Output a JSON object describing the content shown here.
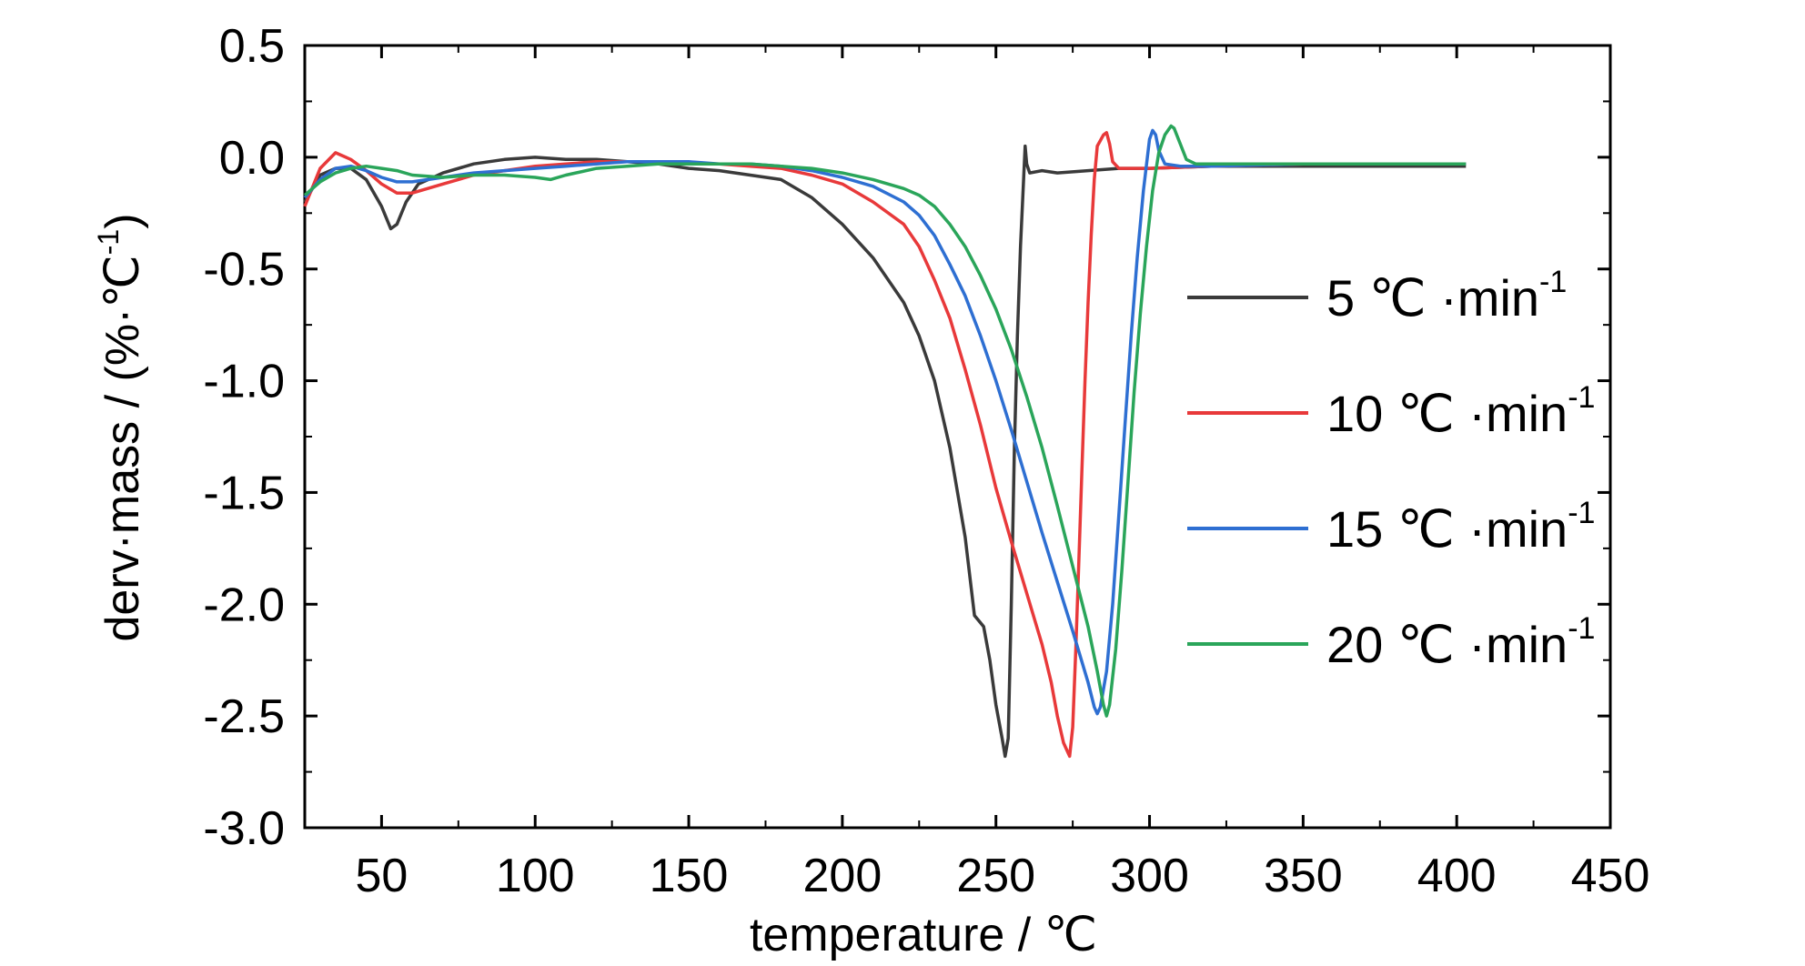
{
  "chart_data": {
    "type": "line",
    "xlabel": "temperature / ℃",
    "ylabel_main": "derv·mass / (%·℃",
    "ylabel_sup": "-1",
    "ylabel_close": ")",
    "xlim": [
      25,
      450
    ],
    "ylim": [
      -3.0,
      0.5
    ],
    "x_ticks": [
      50,
      100,
      150,
      200,
      250,
      300,
      350,
      400,
      450
    ],
    "x_tick_labels": [
      "50",
      "100",
      "150",
      "200",
      "250",
      "300",
      "350",
      "400",
      "450"
    ],
    "y_ticks": [
      0.5,
      0.0,
      -0.5,
      -1.0,
      -1.5,
      -2.0,
      -2.5,
      -3.0
    ],
    "y_tick_labels": [
      "0.5",
      "0.0",
      "-0.5",
      "-1.0",
      "-1.5",
      "-2.0",
      "-2.5",
      "-3.0"
    ],
    "grid": false,
    "legend_position": "right",
    "series": [
      {
        "name": "5 ℃·min-1",
        "legend_main": "5 ℃ ·min",
        "legend_sup": "-1",
        "color": "#3a3a3a",
        "points": [
          [
            25,
            -0.2
          ],
          [
            30,
            -0.08
          ],
          [
            35,
            -0.05
          ],
          [
            40,
            -0.05
          ],
          [
            45,
            -0.1
          ],
          [
            50,
            -0.22
          ],
          [
            53,
            -0.32
          ],
          [
            55,
            -0.3
          ],
          [
            58,
            -0.2
          ],
          [
            62,
            -0.12
          ],
          [
            70,
            -0.07
          ],
          [
            80,
            -0.03
          ],
          [
            90,
            -0.01
          ],
          [
            100,
            0.0
          ],
          [
            110,
            -0.01
          ],
          [
            120,
            -0.01
          ],
          [
            130,
            -0.02
          ],
          [
            140,
            -0.03
          ],
          [
            150,
            -0.05
          ],
          [
            160,
            -0.06
          ],
          [
            170,
            -0.08
          ],
          [
            180,
            -0.1
          ],
          [
            190,
            -0.18
          ],
          [
            200,
            -0.3
          ],
          [
            210,
            -0.45
          ],
          [
            220,
            -0.65
          ],
          [
            225,
            -0.8
          ],
          [
            230,
            -1.0
          ],
          [
            235,
            -1.3
          ],
          [
            240,
            -1.7
          ],
          [
            243,
            -2.05
          ],
          [
            246,
            -2.1
          ],
          [
            248,
            -2.25
          ],
          [
            250,
            -2.45
          ],
          [
            252,
            -2.6
          ],
          [
            253,
            -2.68
          ],
          [
            254,
            -2.6
          ],
          [
            255,
            -2.0
          ],
          [
            256,
            -1.3
          ],
          [
            257,
            -0.8
          ],
          [
            258,
            -0.4
          ],
          [
            259,
            -0.1
          ],
          [
            259.5,
            0.05
          ],
          [
            260,
            -0.03
          ],
          [
            261,
            -0.07
          ],
          [
            265,
            -0.06
          ],
          [
            270,
            -0.07
          ],
          [
            280,
            -0.06
          ],
          [
            290,
            -0.05
          ],
          [
            300,
            -0.05
          ],
          [
            320,
            -0.04
          ],
          [
            350,
            -0.04
          ],
          [
            380,
            -0.04
          ],
          [
            403,
            -0.04
          ]
        ]
      },
      {
        "name": "10 ℃·min-1",
        "legend_main": "10 ℃ ·min",
        "legend_sup": "-1",
        "color": "#e8393a",
        "points": [
          [
            25,
            -0.22
          ],
          [
            30,
            -0.05
          ],
          [
            35,
            0.02
          ],
          [
            40,
            -0.01
          ],
          [
            45,
            -0.06
          ],
          [
            50,
            -0.12
          ],
          [
            55,
            -0.16
          ],
          [
            60,
            -0.16
          ],
          [
            70,
            -0.12
          ],
          [
            80,
            -0.08
          ],
          [
            90,
            -0.06
          ],
          [
            100,
            -0.04
          ],
          [
            110,
            -0.03
          ],
          [
            120,
            -0.02
          ],
          [
            130,
            -0.02
          ],
          [
            140,
            -0.02
          ],
          [
            150,
            -0.03
          ],
          [
            160,
            -0.03
          ],
          [
            170,
            -0.04
          ],
          [
            180,
            -0.05
          ],
          [
            190,
            -0.08
          ],
          [
            200,
            -0.12
          ],
          [
            210,
            -0.2
          ],
          [
            220,
            -0.3
          ],
          [
            225,
            -0.4
          ],
          [
            230,
            -0.55
          ],
          [
            235,
            -0.72
          ],
          [
            240,
            -0.95
          ],
          [
            245,
            -1.2
          ],
          [
            250,
            -1.48
          ],
          [
            255,
            -1.72
          ],
          [
            260,
            -1.95
          ],
          [
            265,
            -2.18
          ],
          [
            268,
            -2.35
          ],
          [
            270,
            -2.5
          ],
          [
            272,
            -2.62
          ],
          [
            274,
            -2.68
          ],
          [
            275,
            -2.55
          ],
          [
            276,
            -2.2
          ],
          [
            277,
            -1.8
          ],
          [
            278,
            -1.4
          ],
          [
            279,
            -1.0
          ],
          [
            280,
            -0.65
          ],
          [
            281,
            -0.35
          ],
          [
            282,
            -0.1
          ],
          [
            283,
            0.05
          ],
          [
            285,
            0.1
          ],
          [
            286,
            0.11
          ],
          [
            287,
            0.06
          ],
          [
            288,
            -0.02
          ],
          [
            290,
            -0.05
          ],
          [
            300,
            -0.05
          ],
          [
            320,
            -0.04
          ],
          [
            350,
            -0.03
          ],
          [
            380,
            -0.03
          ],
          [
            403,
            -0.03
          ]
        ]
      },
      {
        "name": "15 ℃·min-1",
        "legend_main": "15 ℃ ·min",
        "legend_sup": "-1",
        "color": "#2e6fd2",
        "points": [
          [
            25,
            -0.18
          ],
          [
            30,
            -0.1
          ],
          [
            35,
            -0.05
          ],
          [
            40,
            -0.04
          ],
          [
            45,
            -0.06
          ],
          [
            50,
            -0.09
          ],
          [
            55,
            -0.11
          ],
          [
            60,
            -0.11
          ],
          [
            70,
            -0.09
          ],
          [
            80,
            -0.07
          ],
          [
            90,
            -0.06
          ],
          [
            100,
            -0.05
          ],
          [
            110,
            -0.04
          ],
          [
            120,
            -0.03
          ],
          [
            130,
            -0.02
          ],
          [
            140,
            -0.02
          ],
          [
            150,
            -0.02
          ],
          [
            160,
            -0.03
          ],
          [
            170,
            -0.03
          ],
          [
            180,
            -0.04
          ],
          [
            190,
            -0.06
          ],
          [
            200,
            -0.09
          ],
          [
            210,
            -0.13
          ],
          [
            220,
            -0.2
          ],
          [
            225,
            -0.26
          ],
          [
            230,
            -0.35
          ],
          [
            235,
            -0.48
          ],
          [
            240,
            -0.62
          ],
          [
            245,
            -0.8
          ],
          [
            250,
            -1.0
          ],
          [
            255,
            -1.22
          ],
          [
            260,
            -1.45
          ],
          [
            265,
            -1.68
          ],
          [
            270,
            -1.9
          ],
          [
            275,
            -2.12
          ],
          [
            280,
            -2.35
          ],
          [
            282,
            -2.46
          ],
          [
            283,
            -2.49
          ],
          [
            284,
            -2.46
          ],
          [
            286,
            -2.3
          ],
          [
            288,
            -2.0
          ],
          [
            290,
            -1.6
          ],
          [
            292,
            -1.2
          ],
          [
            294,
            -0.8
          ],
          [
            296,
            -0.45
          ],
          [
            298,
            -0.15
          ],
          [
            300,
            0.08
          ],
          [
            301,
            0.12
          ],
          [
            302,
            0.1
          ],
          [
            303,
            0.03
          ],
          [
            305,
            -0.03
          ],
          [
            310,
            -0.04
          ],
          [
            320,
            -0.04
          ],
          [
            350,
            -0.03
          ],
          [
            380,
            -0.03
          ],
          [
            403,
            -0.03
          ]
        ]
      },
      {
        "name": "20 ℃·min-1",
        "legend_main": "20 ℃ ·min",
        "legend_sup": "-1",
        "color": "#2aa55a",
        "points": [
          [
            25,
            -0.17
          ],
          [
            30,
            -0.11
          ],
          [
            35,
            -0.07
          ],
          [
            40,
            -0.05
          ],
          [
            45,
            -0.04
          ],
          [
            50,
            -0.05
          ],
          [
            55,
            -0.06
          ],
          [
            60,
            -0.08
          ],
          [
            70,
            -0.09
          ],
          [
            80,
            -0.08
          ],
          [
            90,
            -0.08
          ],
          [
            100,
            -0.09
          ],
          [
            105,
            -0.1
          ],
          [
            110,
            -0.08
          ],
          [
            120,
            -0.05
          ],
          [
            130,
            -0.04
          ],
          [
            140,
            -0.03
          ],
          [
            150,
            -0.03
          ],
          [
            160,
            -0.03
          ],
          [
            170,
            -0.03
          ],
          [
            180,
            -0.04
          ],
          [
            190,
            -0.05
          ],
          [
            200,
            -0.07
          ],
          [
            210,
            -0.1
          ],
          [
            220,
            -0.14
          ],
          [
            225,
            -0.17
          ],
          [
            230,
            -0.22
          ],
          [
            235,
            -0.3
          ],
          [
            240,
            -0.4
          ],
          [
            245,
            -0.53
          ],
          [
            250,
            -0.68
          ],
          [
            255,
            -0.86
          ],
          [
            260,
            -1.07
          ],
          [
            265,
            -1.3
          ],
          [
            270,
            -1.56
          ],
          [
            275,
            -1.83
          ],
          [
            280,
            -2.1
          ],
          [
            283,
            -2.3
          ],
          [
            285,
            -2.45
          ],
          [
            286,
            -2.5
          ],
          [
            287,
            -2.45
          ],
          [
            289,
            -2.2
          ],
          [
            291,
            -1.85
          ],
          [
            293,
            -1.45
          ],
          [
            295,
            -1.05
          ],
          [
            297,
            -0.7
          ],
          [
            299,
            -0.4
          ],
          [
            301,
            -0.15
          ],
          [
            303,
            0.02
          ],
          [
            305,
            0.1
          ],
          [
            307,
            0.14
          ],
          [
            308,
            0.13
          ],
          [
            310,
            0.06
          ],
          [
            312,
            -0.01
          ],
          [
            315,
            -0.03
          ],
          [
            320,
            -0.03
          ],
          [
            350,
            -0.03
          ],
          [
            380,
            -0.03
          ],
          [
            403,
            -0.03
          ]
        ]
      }
    ]
  }
}
